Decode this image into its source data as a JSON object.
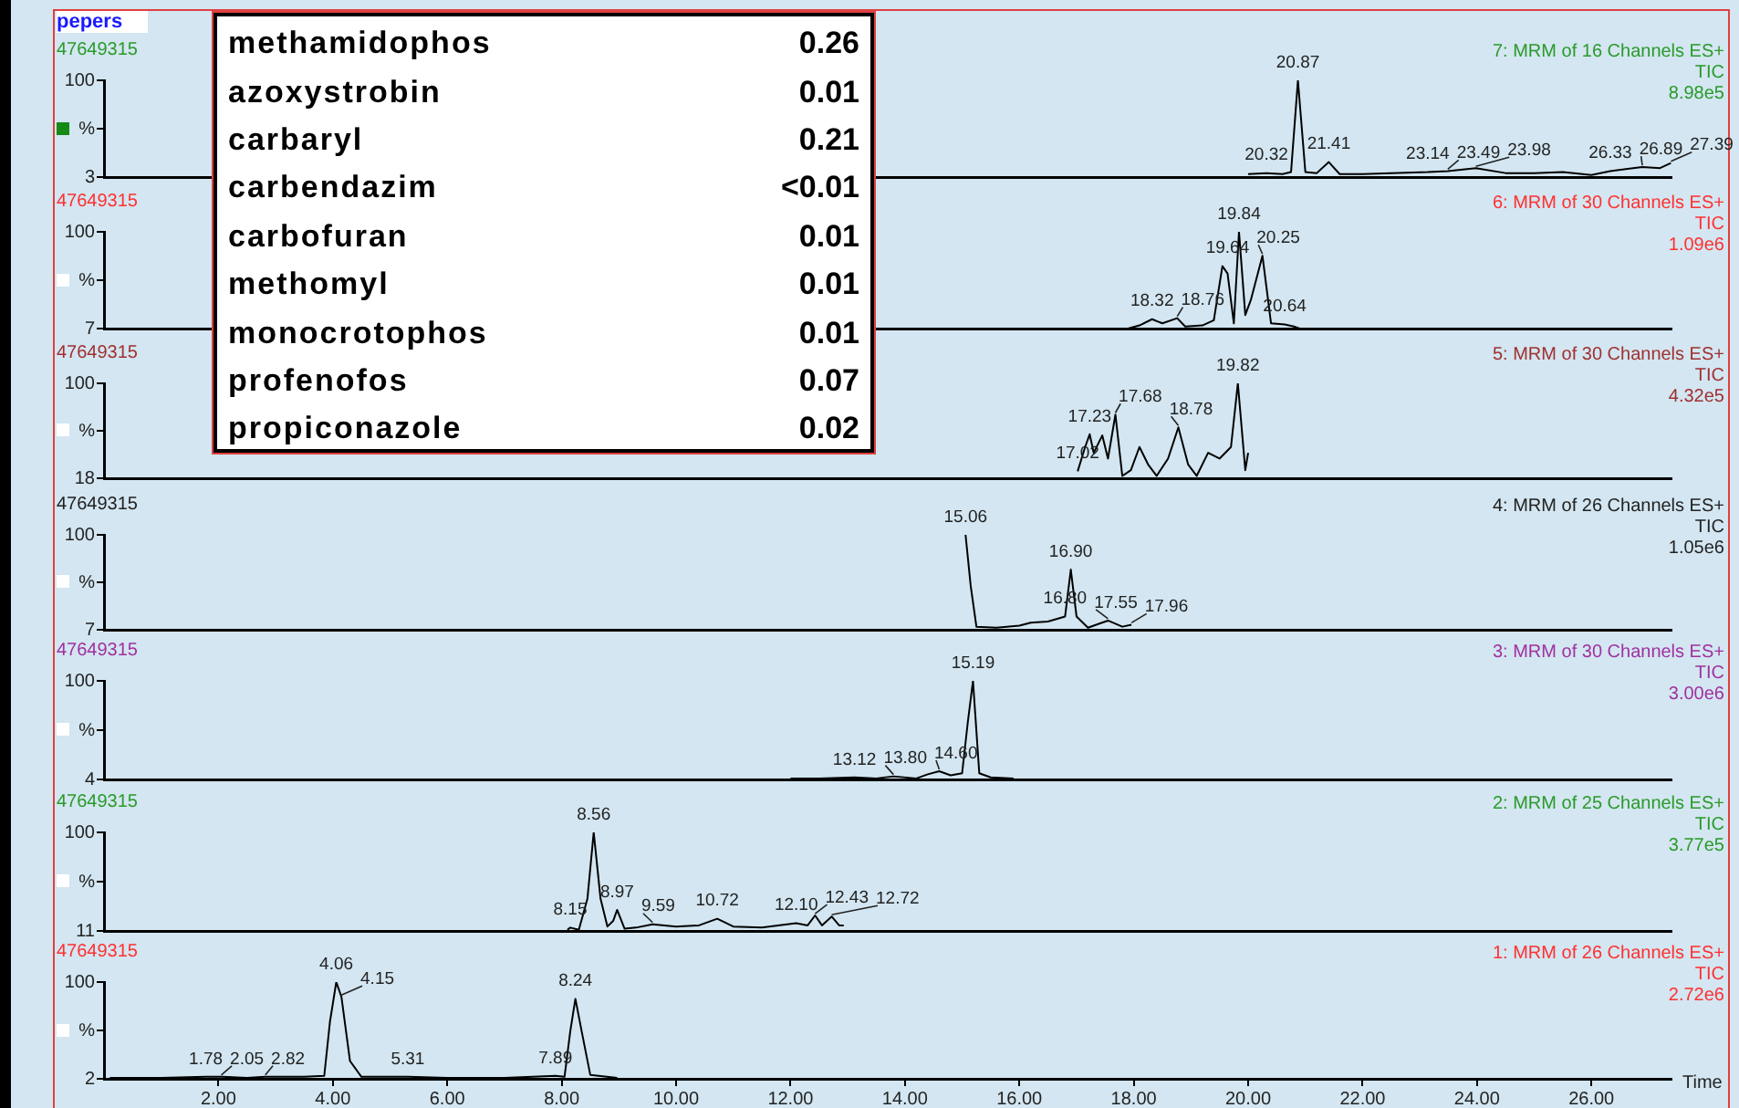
{
  "chart_data": [
    {
      "type": "other",
      "title": "pepers",
      "categories": [
        "methamidophos",
        "azoxystrobin",
        "carbaryl",
        "carbendazim",
        "carbofuran",
        "methomyl",
        "monocrotophos",
        "profenofos",
        "propiconazole"
      ],
      "value_labels": [
        "0.26",
        "0.01",
        "0.21",
        "<0.01",
        "0.01",
        "0.01",
        "0.01",
        "0.07",
        "0.02"
      ]
    },
    {
      "type": "line",
      "title": "7: MRM of 16 Channels ES+",
      "ylabel": "47649315",
      "tick_labels": "y",
      "color": "#000000",
      "xlim": [
        0,
        27.4
      ],
      "ylim": [
        3,
        100
      ],
      "yticks": [
        3,
        {
          "value": 51.5,
          "label": "%"
        },
        100
      ],
      "x": [
        20.0,
        20.32,
        20.6,
        20.75,
        20.87,
        21.0,
        21.2,
        21.41,
        21.6,
        22.0,
        22.5,
        23.14,
        23.49,
        23.98,
        24.5,
        25.0,
        25.5,
        26.0,
        26.33,
        26.89,
        27.2,
        27.39
      ],
      "values": [
        6,
        7,
        6,
        8,
        100,
        8,
        7,
        18,
        6,
        6,
        7,
        8,
        9,
        12,
        7,
        7,
        8,
        5,
        9,
        13,
        12,
        17
      ],
      "annotations": [
        "TIC",
        "8.98e5",
        {
          "text": "20.87",
          "x": 20.87,
          "y": 100
        },
        {
          "text": "20.32",
          "x": 20.32,
          "y": 7
        },
        {
          "text": "21.41",
          "x": 21.41,
          "y": 18
        },
        {
          "text": "23.14",
          "x": 23.14,
          "y": 8
        },
        {
          "text": "23.49",
          "x": 23.49,
          "y": 9
        },
        {
          "text": "23.98",
          "x": 23.98,
          "y": 12
        },
        {
          "text": "26.33",
          "x": 26.33,
          "y": 9
        },
        {
          "text": "26.89",
          "x": 26.89,
          "y": 13
        },
        {
          "text": "27.39",
          "x": 27.39,
          "y": 17
        }
      ]
    },
    {
      "type": "line",
      "title": "6: MRM of 30 Channels ES+",
      "ylabel": "47649315",
      "tick_labels": "y",
      "color": "#000000",
      "xlim": [
        0,
        27.4
      ],
      "ylim": [
        7,
        100
      ],
      "yticks": [
        7,
        {
          "value": 53.5,
          "label": "%"
        },
        100
      ],
      "x": [
        17.9,
        18.1,
        18.32,
        18.5,
        18.76,
        18.9,
        19.2,
        19.4,
        19.55,
        19.64,
        19.75,
        19.84,
        19.95,
        20.05,
        20.25,
        20.4,
        20.64,
        20.8,
        20.9
      ],
      "values": [
        7,
        10,
        16,
        12,
        17,
        9,
        10,
        15,
        67,
        60,
        12,
        100,
        20,
        35,
        77,
        12,
        11,
        9,
        7
      ],
      "annotations": [
        "TIC",
        "1.09e6",
        {
          "text": "19.84",
          "x": 19.84,
          "y": 100
        },
        {
          "text": "19.64",
          "x": 19.64,
          "y": 67
        },
        {
          "text": "20.25",
          "x": 20.25,
          "y": 77
        },
        {
          "text": "18.32",
          "x": 18.32,
          "y": 16
        },
        {
          "text": "18.76",
          "x": 18.76,
          "y": 17
        },
        {
          "text": "20.64",
          "x": 20.64,
          "y": 11
        }
      ]
    },
    {
      "type": "line",
      "title": "5: MRM of 30 Channels ES+",
      "ylabel": "47649315",
      "tick_labels": "y",
      "color": "#000000",
      "xlim": [
        0,
        27.4
      ],
      "ylim": [
        18,
        100
      ],
      "yticks": [
        18,
        {
          "value": 59,
          "label": "%"
        },
        100
      ],
      "x": [
        17.02,
        17.15,
        17.23,
        17.3,
        17.45,
        17.55,
        17.68,
        17.8,
        17.95,
        18.1,
        18.25,
        18.4,
        18.6,
        18.78,
        18.95,
        19.1,
        19.3,
        19.5,
        19.7,
        19.82,
        19.95,
        20.0
      ],
      "values": [
        24,
        45,
        56,
        40,
        55,
        35,
        73,
        20,
        25,
        45,
        30,
        20,
        35,
        62,
        30,
        20,
        40,
        35,
        45,
        100,
        25,
        40
      ],
      "annotations": [
        "TIC",
        "4.32e5",
        {
          "text": "19.82",
          "x": 19.82,
          "y": 100
        },
        {
          "text": "17.02",
          "x": 17.02,
          "y": 24
        },
        {
          "text": "17.23",
          "x": 17.23,
          "y": 56
        },
        {
          "text": "17.68",
          "x": 17.68,
          "y": 73
        },
        {
          "text": "18.78",
          "x": 18.78,
          "y": 62
        }
      ]
    },
    {
      "type": "line",
      "title": "4: MRM of 26 Channels ES+",
      "ylabel": "47649315",
      "tick_labels": "y",
      "color": "#000000",
      "xlim": [
        0,
        27.4
      ],
      "ylim": [
        7,
        100
      ],
      "yticks": [
        7,
        {
          "value": 53.5,
          "label": "%"
        },
        100
      ],
      "x": [
        15.06,
        15.15,
        15.25,
        15.6,
        16.0,
        16.2,
        16.5,
        16.8,
        16.9,
        17.0,
        17.2,
        17.4,
        17.55,
        17.8,
        17.96
      ],
      "values": [
        100,
        50,
        10,
        9,
        11,
        14,
        15,
        20,
        66,
        20,
        9,
        13,
        16,
        10,
        12
      ],
      "annotations": [
        "TIC",
        "1.05e6",
        {
          "text": "15.06",
          "x": 15.06,
          "y": 100
        },
        {
          "text": "16.90",
          "x": 16.9,
          "y": 66
        },
        {
          "text": "16.80",
          "x": 16.8,
          "y": 20
        },
        {
          "text": "17.55",
          "x": 17.55,
          "y": 16
        },
        {
          "text": "17.96",
          "x": 17.96,
          "y": 12
        }
      ]
    },
    {
      "type": "line",
      "title": "3: MRM of 30 Channels ES+",
      "ylabel": "47649315",
      "tick_labels": "y",
      "color": "#000000",
      "xlim": [
        0,
        27.4
      ],
      "ylim": [
        4,
        100
      ],
      "yticks": [
        4,
        {
          "value": 52,
          "label": "%"
        },
        100
      ],
      "x": [
        12.0,
        12.5,
        13.12,
        13.5,
        13.8,
        14.2,
        14.4,
        14.6,
        14.8,
        15.0,
        15.1,
        15.19,
        15.3,
        15.5,
        15.9
      ],
      "values": [
        5,
        5,
        6,
        5,
        7,
        5,
        9,
        12,
        8,
        10,
        60,
        100,
        10,
        6,
        5
      ],
      "annotations": [
        "TIC",
        "3.00e6",
        {
          "text": "15.19",
          "x": 15.19,
          "y": 100
        },
        {
          "text": "13.12",
          "x": 13.12,
          "y": 6
        },
        {
          "text": "13.80",
          "x": 13.8,
          "y": 7
        },
        {
          "text": "14.60",
          "x": 14.6,
          "y": 12
        }
      ]
    },
    {
      "type": "line",
      "title": "2: MRM of 25 Channels ES+",
      "ylabel": "47649315",
      "tick_labels": "y",
      "color": "#000000",
      "xlim": [
        0,
        27.4
      ],
      "ylim": [
        11,
        100
      ],
      "yticks": [
        11,
        {
          "value": 55.5,
          "label": "%"
        },
        100
      ],
      "x": [
        8.1,
        8.15,
        8.3,
        8.45,
        8.56,
        8.68,
        8.8,
        8.9,
        8.97,
        9.1,
        9.3,
        9.59,
        10.0,
        10.4,
        10.72,
        11.0,
        11.5,
        12.1,
        12.3,
        12.43,
        12.55,
        12.72,
        12.85,
        12.93
      ],
      "values": [
        12,
        14,
        12,
        40,
        100,
        40,
        15,
        20,
        30,
        13,
        14,
        17,
        15,
        16,
        22,
        15,
        14,
        18,
        16,
        25,
        16,
        24,
        16,
        16
      ],
      "annotations": [
        "TIC",
        "3.77e5",
        {
          "text": "8.56",
          "x": 8.56,
          "y": 100
        },
        {
          "text": "8.15",
          "x": 8.15,
          "y": 14
        },
        {
          "text": "8.97",
          "x": 8.97,
          "y": 30
        },
        {
          "text": "9.59",
          "x": 9.59,
          "y": 17
        },
        {
          "text": "10.72",
          "x": 10.72,
          "y": 22
        },
        {
          "text": "12.10",
          "x": 12.1,
          "y": 18
        },
        {
          "text": "12.43",
          "x": 12.43,
          "y": 25
        },
        {
          "text": "12.72",
          "x": 12.72,
          "y": 24
        }
      ]
    },
    {
      "type": "line",
      "title": "1: MRM of 26 Channels ES+",
      "ylabel": "47649315",
      "xlabel": "Time",
      "color": "#000000",
      "xlim": [
        0,
        27.4
      ],
      "ylim": [
        2,
        100
      ],
      "yticks": [
        2,
        {
          "value": 51,
          "label": "%"
        },
        100
      ],
      "xticks": [
        {
          "value": 2,
          "label": "2.00"
        },
        {
          "value": 4,
          "label": "4.00"
        },
        {
          "value": 6,
          "label": "6.00"
        },
        {
          "value": 8,
          "label": "8.00"
        },
        {
          "value": 10,
          "label": "10.00"
        },
        {
          "value": 12,
          "label": "12.00"
        },
        {
          "value": 14,
          "label": "14.00"
        },
        {
          "value": 16,
          "label": "16.00"
        },
        {
          "value": 18,
          "label": "18.00"
        },
        {
          "value": 20,
          "label": "20.00"
        },
        {
          "value": 22,
          "label": "22.00"
        },
        {
          "value": 24,
          "label": "24.00"
        },
        {
          "value": 26,
          "label": "26.00"
        }
      ],
      "x": [
        0.1,
        1.0,
        1.78,
        2.05,
        2.5,
        2.82,
        3.5,
        3.85,
        3.95,
        4.06,
        4.15,
        4.3,
        4.5,
        5.31,
        6.0,
        7.0,
        7.89,
        8.05,
        8.15,
        8.24,
        8.35,
        8.5,
        8.97
      ],
      "values": [
        3,
        3,
        4,
        4,
        3,
        4,
        4,
        5,
        60,
        100,
        85,
        20,
        4,
        4,
        3,
        3,
        5,
        4,
        50,
        83,
        50,
        6,
        3
      ],
      "annotations": [
        "TIC",
        "2.72e6",
        {
          "text": "4.06",
          "x": 4.06,
          "y": 100
        },
        {
          "text": "4.15",
          "x": 4.15,
          "y": 85
        },
        {
          "text": "8.24",
          "x": 8.24,
          "y": 83
        },
        {
          "text": "1.78",
          "x": 1.78,
          "y": 4
        },
        {
          "text": "2.05",
          "x": 2.05,
          "y": 4
        },
        {
          "text": "2.82",
          "x": 2.82,
          "y": 4
        },
        {
          "text": "5.31",
          "x": 5.31,
          "y": 4
        },
        {
          "text": "7.89",
          "x": 7.89,
          "y": 5
        }
      ]
    }
  ]
}
